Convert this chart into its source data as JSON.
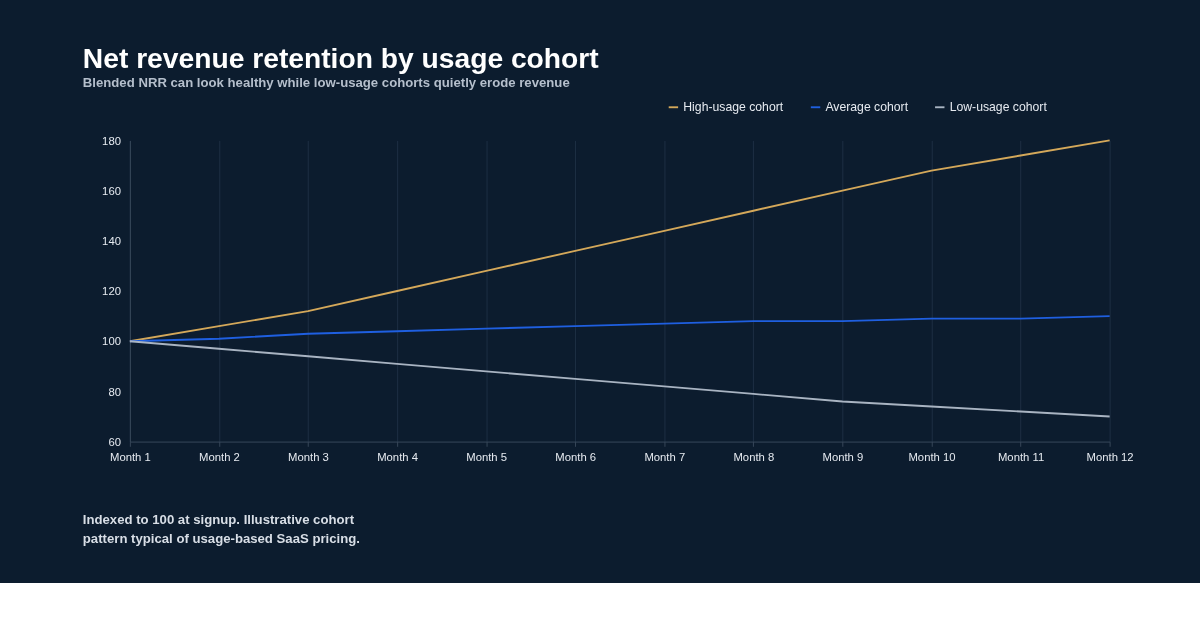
{
  "chart_data": {
    "type": "line",
    "title": "Net revenue retention by usage cohort",
    "subtitle": "Blended NRR can look healthy while low-usage cohorts quietly erode revenue",
    "categories": [
      "Month 1",
      "Month 2",
      "Month 3",
      "Month 4",
      "Month 5",
      "Month 6",
      "Month 7",
      "Month 8",
      "Month 9",
      "Month 10",
      "Month 11",
      "Month 12"
    ],
    "series": [
      {
        "name": "High-usage cohort",
        "color": "#d4a85a",
        "values": [
          100,
          106,
          112,
          120,
          128,
          136,
          144,
          152,
          160,
          168,
          174,
          180
        ]
      },
      {
        "name": "Average cohort",
        "color": "#1f5fe0",
        "values": [
          100,
          101,
          103,
          104,
          105,
          106,
          107,
          108,
          108,
          109,
          109,
          110
        ]
      },
      {
        "name": "Low-usage cohort",
        "color": "#a9b4c2",
        "values": [
          100,
          97,
          94,
          91,
          88,
          85,
          82,
          79,
          76,
          74,
          72,
          70
        ]
      }
    ],
    "ylim": [
      60,
      180
    ],
    "yticks": [
      60,
      80,
      100,
      120,
      140,
      160,
      180
    ],
    "grid": "x",
    "legend": "top right",
    "marker": "none",
    "line_style": "solid",
    "annotations": [
      "Indexed to 100 at signup. Illustrative cohort pattern typical of usage-based SaaS pricing."
    ]
  }
}
